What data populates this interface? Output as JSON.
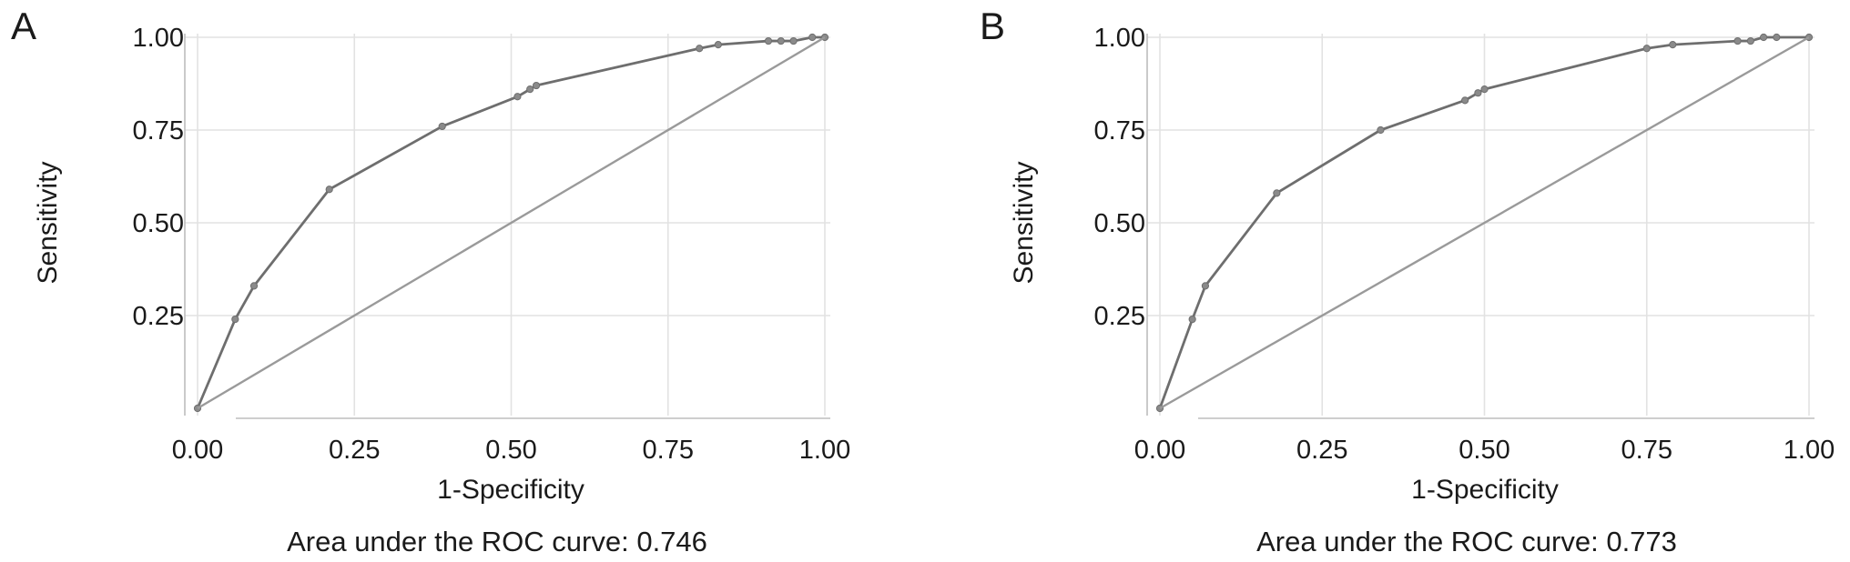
{
  "chart_data": [
    {
      "type": "line",
      "panel_label": "A",
      "xlabel": "1-Specificity",
      "ylabel": "Sensitivity",
      "xlim": [
        0,
        1
      ],
      "ylim": [
        0,
        1
      ],
      "x_ticks": [
        "0.00",
        "0.25",
        "0.50",
        "0.75",
        "1.00"
      ],
      "y_ticks": [
        "0.25",
        "0.50",
        "0.75",
        "1.00"
      ],
      "grid": true,
      "caption": "Area under the ROC curve: 0.746",
      "series": [
        {
          "kind": "roc",
          "color": "#6e6e6e",
          "x": [
            0.0,
            0.06,
            0.09,
            0.21,
            0.39,
            0.51,
            0.53,
            0.54,
            0.8,
            0.83,
            0.91,
            0.93,
            0.95,
            0.98,
            1.0
          ],
          "y": [
            0.0,
            0.24,
            0.33,
            0.59,
            0.76,
            0.84,
            0.86,
            0.87,
            0.97,
            0.98,
            0.99,
            0.99,
            0.99,
            1.0,
            1.0
          ]
        },
        {
          "kind": "reference",
          "color": "#9a9a9a",
          "x": [
            0.0,
            1.0
          ],
          "y": [
            0.0,
            1.0
          ]
        }
      ]
    },
    {
      "type": "line",
      "panel_label": "B",
      "xlabel": "1-Specificity",
      "ylabel": "Sensitivity",
      "xlim": [
        0,
        1
      ],
      "ylim": [
        0,
        1
      ],
      "x_ticks": [
        "0.00",
        "0.25",
        "0.50",
        "0.75",
        "1.00"
      ],
      "y_ticks": [
        "0.25",
        "0.50",
        "0.75",
        "1.00"
      ],
      "grid": true,
      "caption": "Area under the ROC curve: 0.773",
      "series": [
        {
          "kind": "roc",
          "color": "#6e6e6e",
          "x": [
            0.0,
            0.05,
            0.07,
            0.18,
            0.34,
            0.47,
            0.49,
            0.5,
            0.75,
            0.79,
            0.89,
            0.91,
            0.93,
            0.95,
            1.0
          ],
          "y": [
            0.0,
            0.24,
            0.33,
            0.58,
            0.75,
            0.83,
            0.85,
            0.86,
            0.97,
            0.98,
            0.99,
            0.99,
            1.0,
            1.0,
            1.0
          ]
        },
        {
          "kind": "reference",
          "color": "#9a9a9a",
          "x": [
            0.0,
            1.0
          ],
          "y": [
            0.0,
            1.0
          ]
        }
      ]
    }
  ]
}
